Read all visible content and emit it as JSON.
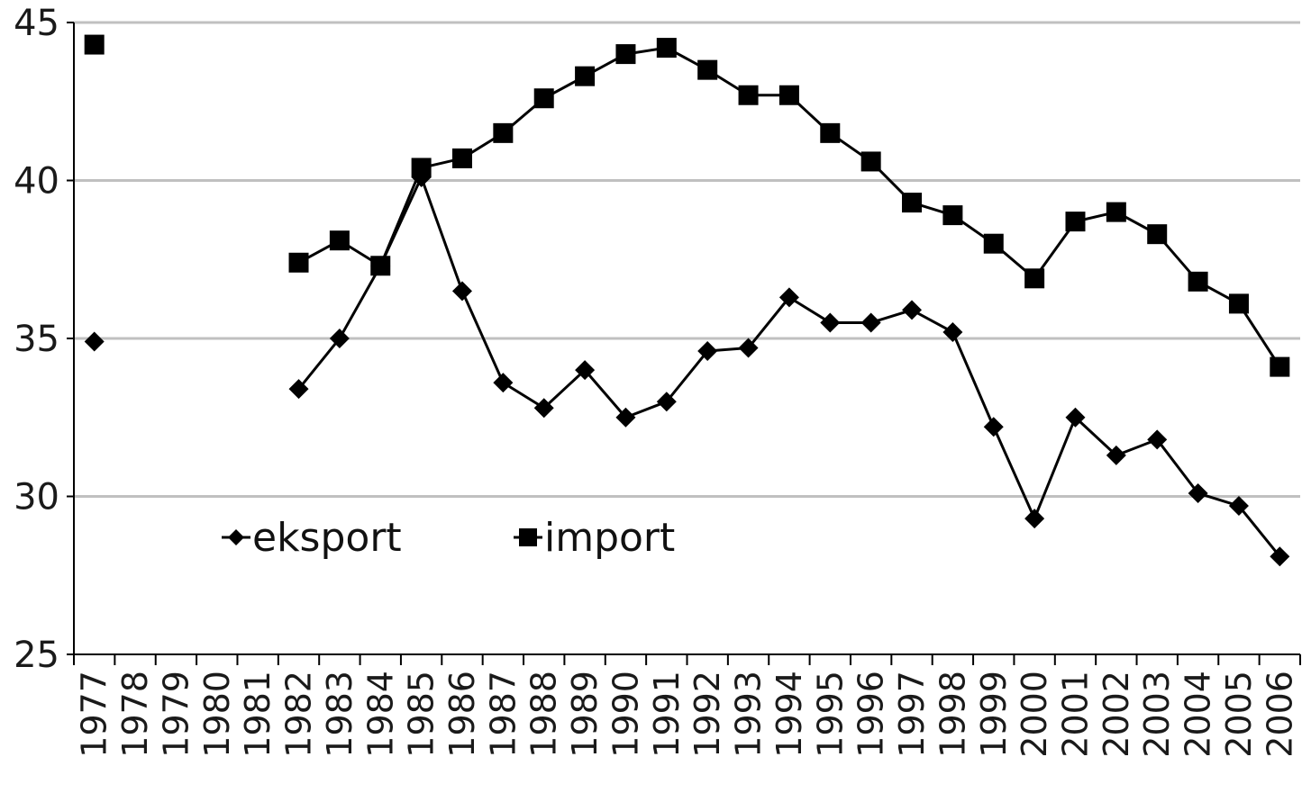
{
  "chart_data": {
    "type": "line",
    "title": "",
    "xlabel": "",
    "ylabel": "",
    "ylim": [
      25,
      45
    ],
    "y_ticks": [
      25,
      30,
      35,
      40,
      45
    ],
    "grid": true,
    "legend_position": "bottom-left",
    "categories": [
      "1977",
      "1978",
      "1979",
      "1980",
      "1981",
      "1982",
      "1983",
      "1984",
      "1985",
      "1986",
      "1987",
      "1988",
      "1989",
      "1990",
      "1991",
      "1992",
      "1993",
      "1994",
      "1995",
      "1996",
      "1997",
      "1998",
      "1999",
      "2000",
      "2001",
      "2002",
      "2003",
      "2004",
      "2005",
      "2006"
    ],
    "series": [
      {
        "name": "eksport",
        "marker": "diamond",
        "color": "#000000",
        "values": [
          34.9,
          null,
          null,
          null,
          null,
          33.4,
          35.0,
          37.3,
          40.1,
          36.5,
          33.6,
          32.8,
          34.0,
          32.5,
          33.0,
          34.6,
          34.7,
          36.3,
          35.5,
          35.5,
          35.9,
          35.2,
          32.2,
          29.3,
          32.5,
          31.3,
          31.8,
          30.1,
          29.7,
          28.1
        ]
      },
      {
        "name": "import",
        "marker": "square",
        "color": "#000000",
        "values": [
          44.3,
          null,
          null,
          null,
          null,
          37.4,
          38.1,
          37.3,
          40.4,
          40.7,
          41.5,
          42.6,
          43.3,
          44.0,
          44.2,
          43.5,
          42.7,
          42.7,
          41.5,
          40.6,
          39.3,
          38.9,
          38.0,
          36.9,
          38.7,
          39.0,
          38.3,
          36.8,
          36.1,
          34.1
        ]
      }
    ]
  }
}
